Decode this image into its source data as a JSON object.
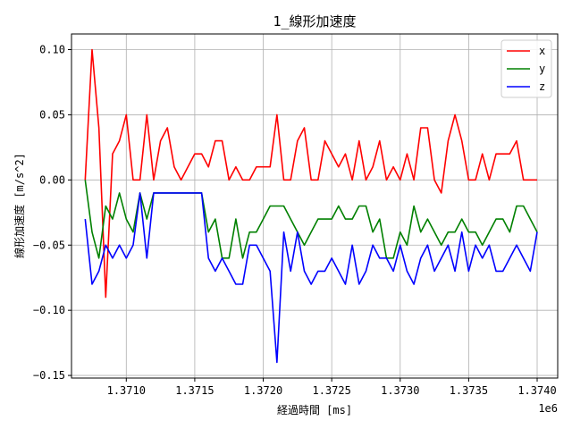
{
  "chart_data": {
    "type": "line",
    "title": "1_線形加速度",
    "xlabel": "経過時間 [ms]",
    "ylabel": "線形加速度 [m/s^2]",
    "x_offset_label": "1e6",
    "xlim": [
      1370600,
      1374150
    ],
    "ylim": [
      -0.152,
      0.112
    ],
    "xticks": [
      1371000,
      1371500,
      1372000,
      1372500,
      1373000,
      1373500,
      1374000
    ],
    "xtick_labels": [
      "1.3710",
      "1.3715",
      "1.3720",
      "1.3725",
      "1.3730",
      "1.3735",
      "1.3740"
    ],
    "yticks": [
      0.1,
      0.05,
      0.0,
      -0.05,
      -0.1,
      -0.15
    ],
    "ytick_labels": [
      "0.10",
      "0.05",
      "0.00",
      "−0.05",
      "−0.10",
      "−0.15"
    ],
    "grid": true,
    "legend_position": "top-right",
    "x": [
      1370700,
      1370750,
      1370800,
      1370850,
      1370900,
      1370950,
      1371000,
      1371050,
      1371100,
      1371150,
      1371200,
      1371250,
      1371300,
      1371350,
      1371400,
      1371450,
      1371500,
      1371550,
      1371600,
      1371650,
      1371700,
      1371750,
      1371800,
      1371850,
      1371900,
      1371950,
      1372000,
      1372050,
      1372100,
      1372150,
      1372200,
      1372250,
      1372300,
      1372350,
      1372400,
      1372450,
      1372500,
      1372550,
      1372600,
      1372650,
      1372700,
      1372750,
      1372800,
      1372850,
      1372900,
      1372950,
      1373000,
      1373050,
      1373100,
      1373150,
      1373200,
      1373250,
      1373300,
      1373350,
      1373400,
      1373450,
      1373500,
      1373550,
      1373600,
      1373650,
      1373700,
      1373750,
      1373800,
      1373850,
      1373900,
      1373950,
      1374000
    ],
    "series": [
      {
        "name": "x",
        "color": "#ff0000",
        "values": [
          0.0,
          0.1,
          0.04,
          -0.09,
          0.02,
          0.03,
          0.05,
          0.0,
          0.0,
          0.05,
          0.0,
          0.03,
          0.04,
          0.01,
          0.0,
          0.01,
          0.02,
          0.02,
          0.01,
          0.03,
          0.03,
          0.0,
          0.01,
          0.0,
          0.0,
          0.01,
          0.01,
          0.01,
          0.05,
          0.0,
          0.0,
          0.03,
          0.04,
          0.0,
          0.0,
          0.03,
          0.02,
          0.01,
          0.02,
          0.0,
          0.03,
          0.0,
          0.01,
          0.03,
          0.0,
          0.01,
          0.0,
          0.02,
          0.0,
          0.04,
          0.04,
          0.0,
          -0.01,
          0.03,
          0.05,
          0.03,
          0.0,
          0.0,
          0.02,
          0.0,
          0.02,
          0.02,
          0.02,
          0.03,
          0.0,
          0.0,
          0.0
        ]
      },
      {
        "name": "y",
        "color": "#008000",
        "values": [
          0.0,
          -0.04,
          -0.06,
          -0.02,
          -0.03,
          -0.01,
          -0.03,
          -0.04,
          -0.01,
          -0.03,
          -0.01,
          -0.01,
          -0.01,
          -0.01,
          -0.01,
          -0.01,
          -0.01,
          -0.01,
          -0.04,
          -0.03,
          -0.06,
          -0.06,
          -0.03,
          -0.06,
          -0.04,
          -0.04,
          -0.03,
          -0.02,
          -0.02,
          -0.02,
          -0.03,
          -0.04,
          -0.05,
          -0.04,
          -0.03,
          -0.03,
          -0.03,
          -0.02,
          -0.03,
          -0.03,
          -0.02,
          -0.02,
          -0.04,
          -0.03,
          -0.06,
          -0.06,
          -0.04,
          -0.05,
          -0.02,
          -0.04,
          -0.03,
          -0.04,
          -0.05,
          -0.04,
          -0.04,
          -0.03,
          -0.04,
          -0.04,
          -0.05,
          -0.04,
          -0.03,
          -0.03,
          -0.04,
          -0.02,
          -0.02,
          -0.03,
          -0.04
        ]
      },
      {
        "name": "z",
        "color": "#0000ff",
        "values": [
          -0.03,
          -0.08,
          -0.07,
          -0.05,
          -0.06,
          -0.05,
          -0.06,
          -0.05,
          -0.01,
          -0.06,
          -0.01,
          -0.01,
          -0.01,
          -0.01,
          -0.01,
          -0.01,
          -0.01,
          -0.01,
          -0.06,
          -0.07,
          -0.06,
          -0.07,
          -0.08,
          -0.08,
          -0.05,
          -0.05,
          -0.06,
          -0.07,
          -0.14,
          -0.04,
          -0.07,
          -0.04,
          -0.07,
          -0.08,
          -0.07,
          -0.07,
          -0.06,
          -0.07,
          -0.08,
          -0.05,
          -0.08,
          -0.07,
          -0.05,
          -0.06,
          -0.06,
          -0.07,
          -0.05,
          -0.07,
          -0.08,
          -0.06,
          -0.05,
          -0.07,
          -0.06,
          -0.05,
          -0.07,
          -0.04,
          -0.07,
          -0.05,
          -0.06,
          -0.05,
          -0.07,
          -0.07,
          -0.06,
          -0.05,
          -0.06,
          -0.07,
          -0.04
        ]
      }
    ]
  }
}
